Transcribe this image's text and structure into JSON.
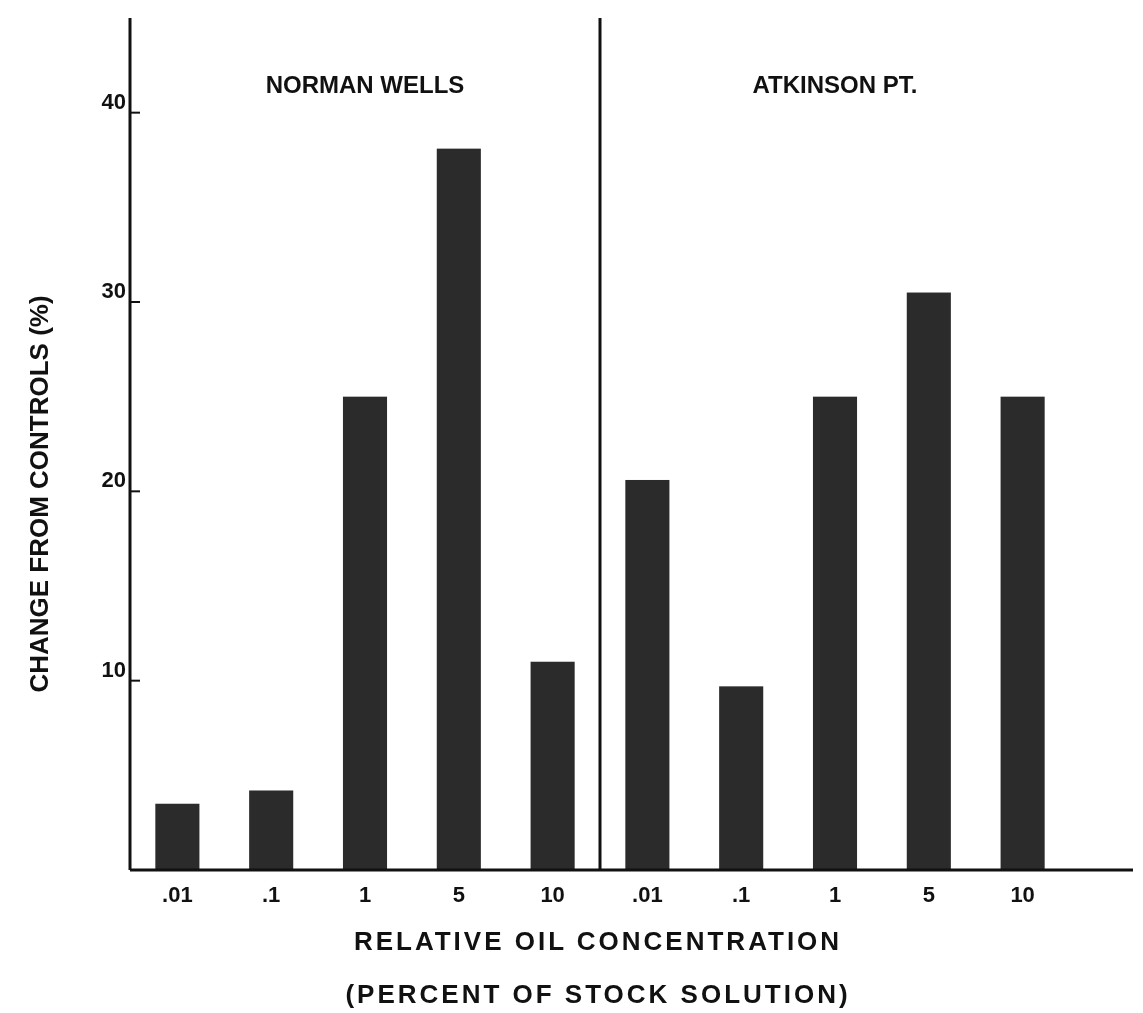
{
  "chart_data": [
    {
      "type": "bar",
      "title": "NORMAN WELLS",
      "ylabel": "CHANGE FROM CONTROLS (%)",
      "xlabel": "RELATIVE OIL CONCENTRATION",
      "annotations": [
        "(PERCENT OF STOCK SOLUTION)"
      ],
      "categories": [
        ".01",
        ".1",
        "1",
        "5",
        "10"
      ],
      "values": [
        3.5,
        4.2,
        25,
        38.1,
        11
      ],
      "color": "#2b2b2b",
      "ylim": [
        0,
        45
      ],
      "yticks": [
        10,
        20,
        30,
        40
      ],
      "grid": false
    },
    {
      "type": "bar",
      "title": "ATKINSON PT.",
      "categories": [
        ".01",
        ".1",
        "1",
        "5",
        "10"
      ],
      "values": [
        20.6,
        9.7,
        25,
        30.5,
        25
      ],
      "color": "#2b2b2b",
      "ylim": [
        0,
        45
      ],
      "tick_labels": "x",
      "grid": false
    }
  ]
}
